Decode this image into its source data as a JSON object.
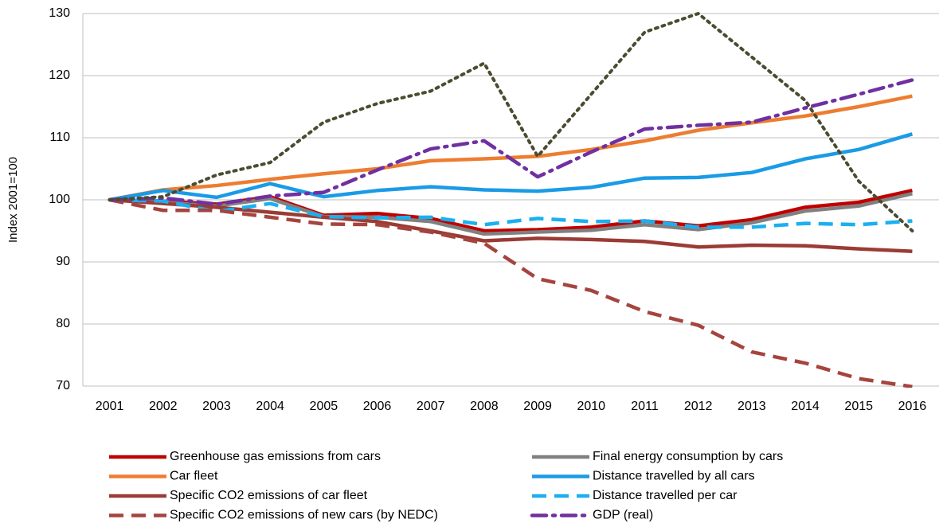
{
  "chart_data": {
    "type": "line",
    "y_label": "Index 2001=100",
    "categories": [
      "2001",
      "2002",
      "2003",
      "2004",
      "2005",
      "2006",
      "2007",
      "2008",
      "2009",
      "2010",
      "2011",
      "2012",
      "2013",
      "2014",
      "2015",
      "2016"
    ],
    "ylim": [
      70,
      130
    ],
    "yticks": [
      70,
      80,
      90,
      100,
      110,
      120,
      130
    ],
    "grid": true,
    "series": [
      {
        "name": "Greenhouse gas emissions from cars",
        "color": "#c00000",
        "style": "solid",
        "values": [
          100,
          99.8,
          99.3,
          100.5,
          97.5,
          97.8,
          97,
          95,
          95.2,
          95.6,
          96.6,
          95.8,
          96.8,
          98.8,
          99.6,
          101.5
        ]
      },
      {
        "name": "Final energy consumption by cars",
        "color": "#808080",
        "style": "solid",
        "values": [
          100,
          99.6,
          99,
          100.2,
          97.3,
          97.2,
          96.5,
          94.5,
          94.8,
          95.1,
          96,
          95.2,
          96.3,
          98.2,
          99,
          101
        ]
      },
      {
        "name": "Car fleet",
        "color": "#ed7d31",
        "style": "solid",
        "values": [
          100,
          101.6,
          102.3,
          103.3,
          104.2,
          105,
          106.3,
          106.6,
          107,
          108.1,
          109.5,
          111.2,
          112.4,
          113.5,
          115,
          116.7
        ]
      },
      {
        "name": "Distance travelled by all cars",
        "color": "#1a9be6",
        "style": "solid",
        "values": [
          100,
          101.5,
          100.4,
          102.6,
          100.5,
          101.5,
          102.1,
          101.6,
          101.4,
          102,
          103.5,
          103.6,
          104.4,
          106.6,
          108.1,
          110.6
        ]
      },
      {
        "name": "Specific CO2 emissions of car fleet",
        "color": "#9b3b35",
        "style": "solid",
        "values": [
          100,
          99.4,
          98.8,
          98,
          97.2,
          96.5,
          95,
          93.4,
          93.8,
          93.6,
          93.3,
          92.4,
          92.7,
          92.6,
          92.1,
          91.7
        ]
      },
      {
        "name": "Distance travelled per car",
        "color": "#1ab0f0",
        "style": "dashed",
        "values": [
          100,
          99.8,
          98.1,
          99.4,
          97.3,
          97.1,
          97.2,
          96,
          97,
          96.5,
          96.6,
          95.6,
          95.6,
          96.2,
          96,
          96.6
        ]
      },
      {
        "name": "Specific CO2 emissions of new cars (by NEDC)",
        "color": "#a5443e",
        "style": "dashed",
        "values": [
          100,
          98.3,
          98.3,
          97.2,
          96.1,
          96,
          94.8,
          93,
          87.3,
          85.4,
          82,
          79.8,
          75.5,
          73.7,
          71.2,
          69.9
        ]
      },
      {
        "name": "GDP (real)",
        "color": "#7030a0",
        "style": "dashdot",
        "values": [
          100,
          100.3,
          99.3,
          100.6,
          101.2,
          104.8,
          108.2,
          109.5,
          103.7,
          107.7,
          111.4,
          112,
          112.5,
          114.8,
          117,
          119.3
        ]
      },
      {
        "color": "#4b4b30",
        "style": "dotted",
        "values": [
          100,
          100.5,
          104,
          106,
          112.5,
          115.5,
          117.5,
          122,
          107,
          117,
          127,
          130,
          123,
          116,
          103,
          95
        ]
      }
    ]
  }
}
